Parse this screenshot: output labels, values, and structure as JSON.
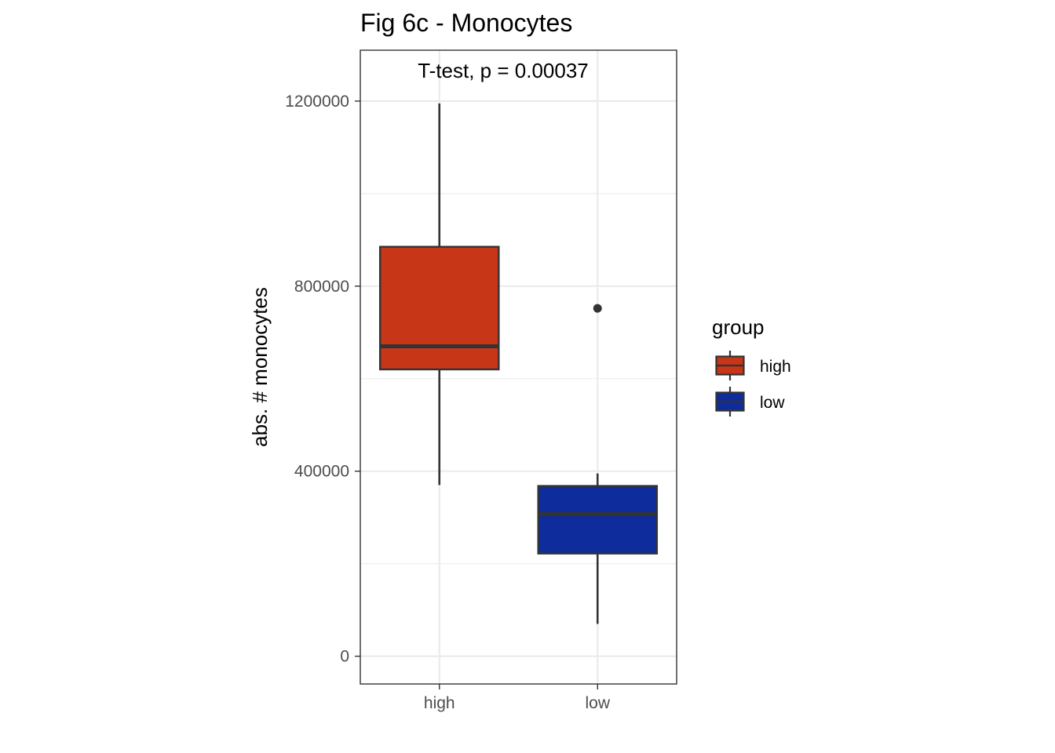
{
  "chart_data": {
    "type": "boxplot",
    "title": "Fig 6c - Monocytes",
    "annotation": "T-test, p = 0.00037",
    "xlabel": "",
    "ylabel": "abs. # monocytes",
    "categories": [
      "high",
      "low"
    ],
    "y_ticks": [
      0,
      400000,
      800000,
      1200000
    ],
    "y_tick_labels": [
      "0",
      "400000",
      "800000",
      "1200000"
    ],
    "ylim": [
      -60000,
      1310000
    ],
    "grid": true,
    "boxes": [
      {
        "category": "high",
        "whisker_low": 370000,
        "q1": 620000,
        "median": 670000,
        "q3": 885000,
        "whisker_high": 1195000,
        "outliers": [],
        "fill": "#c63617"
      },
      {
        "category": "low",
        "whisker_low": 70000,
        "q1": 222000,
        "median": 307000,
        "q3": 368000,
        "whisker_high": 395000,
        "outliers": [
          752000
        ],
        "fill": "#0e2c9c"
      }
    ],
    "legend": {
      "title": "group",
      "position": "right",
      "entries": [
        {
          "label": "high",
          "fill": "#c63617"
        },
        {
          "label": "low",
          "fill": "#0e2c9c"
        }
      ]
    },
    "colors": {
      "stroke": "#333333",
      "grid": "#ebebeb",
      "panel_border": "#333333"
    }
  }
}
